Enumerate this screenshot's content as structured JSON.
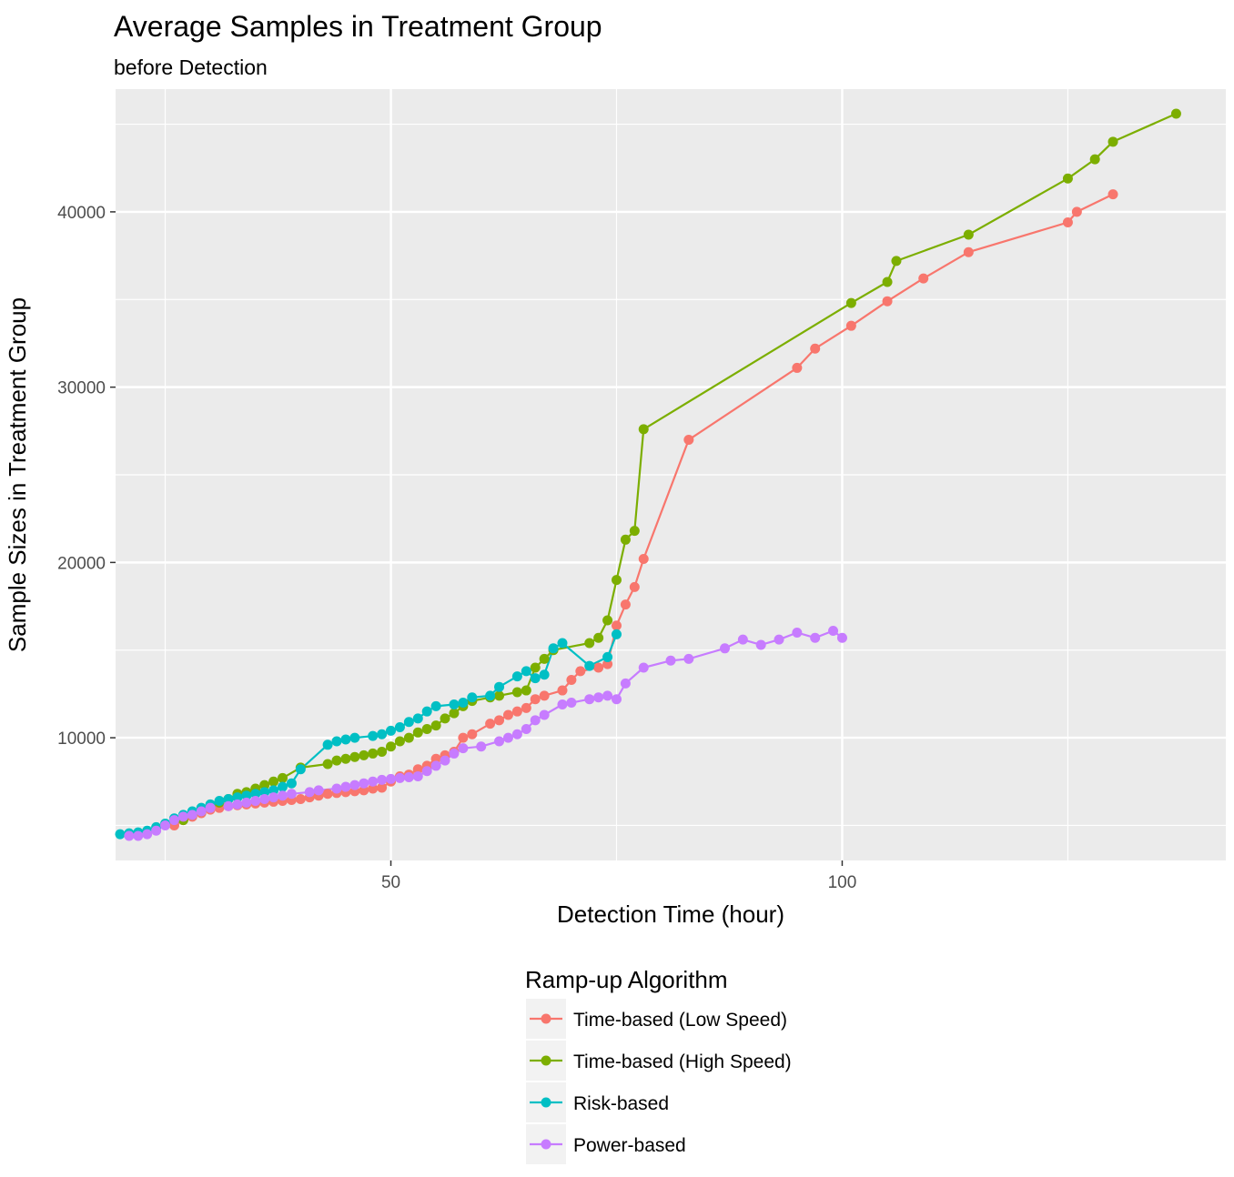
{
  "chart_data": {
    "type": "line",
    "title": "Average Samples in Treatment Group",
    "subtitle": "before Detection",
    "xlabel": "Detection Time (hour)",
    "ylabel": "Sample Sizes in Treatment Group",
    "xlim": [
      19.5,
      142.5
    ],
    "ylim": [
      3000,
      47000
    ],
    "x_major_ticks": [
      50,
      100
    ],
    "x_minor_ticks": [
      25,
      75,
      125
    ],
    "y_major_ticks": [
      10000,
      20000,
      30000,
      40000
    ],
    "y_minor_ticks": [
      5000,
      15000,
      25000,
      35000,
      45000
    ],
    "x_tick_labels": [
      "50",
      "100"
    ],
    "y_tick_labels": [
      "10000",
      "20000",
      "30000",
      "40000"
    ],
    "grid": true,
    "legend_title": "Ramp-up Algorithm",
    "legend_position": "bottom",
    "series": [
      {
        "name": "Time-based (Low Speed)",
        "color": "#F8766D",
        "points": [
          [
            26,
            5000
          ],
          [
            27,
            5300
          ],
          [
            28,
            5500
          ],
          [
            29,
            5700
          ],
          [
            30,
            5900
          ],
          [
            31,
            6000
          ],
          [
            32,
            6100
          ],
          [
            33,
            6150
          ],
          [
            34,
            6200
          ],
          [
            35,
            6250
          ],
          [
            36,
            6300
          ],
          [
            37,
            6350
          ],
          [
            38,
            6400
          ],
          [
            39,
            6450
          ],
          [
            40,
            6500
          ],
          [
            41,
            6600
          ],
          [
            42,
            6700
          ],
          [
            43,
            6800
          ],
          [
            44,
            6850
          ],
          [
            45,
            6900
          ],
          [
            46,
            6950
          ],
          [
            47,
            7000
          ],
          [
            48,
            7100
          ],
          [
            49,
            7150
          ],
          [
            50,
            7500
          ],
          [
            51,
            7800
          ],
          [
            52,
            7900
          ],
          [
            53,
            8200
          ],
          [
            54,
            8400
          ],
          [
            55,
            8800
          ],
          [
            56,
            9000
          ],
          [
            57,
            9200
          ],
          [
            58,
            10000
          ],
          [
            59,
            10200
          ],
          [
            61,
            10800
          ],
          [
            62,
            11000
          ],
          [
            63,
            11300
          ],
          [
            64,
            11500
          ],
          [
            65,
            11700
          ],
          [
            66,
            12200
          ],
          [
            67,
            12400
          ],
          [
            69,
            12700
          ],
          [
            70,
            13300
          ],
          [
            71,
            13800
          ],
          [
            73,
            14000
          ],
          [
            74,
            14200
          ],
          [
            75,
            16400
          ],
          [
            76,
            17600
          ],
          [
            77,
            18600
          ],
          [
            78,
            20200
          ],
          [
            83,
            27000
          ],
          [
            95,
            31100
          ],
          [
            97,
            32200
          ],
          [
            101,
            33500
          ],
          [
            105,
            34900
          ],
          [
            109,
            36200
          ],
          [
            114,
            37700
          ],
          [
            125,
            39400
          ],
          [
            126,
            40000
          ],
          [
            130,
            41000
          ]
        ]
      },
      {
        "name": "Time-based (High Speed)",
        "color": "#7CAE00",
        "points": [
          [
            27,
            5300
          ],
          [
            28,
            5600
          ],
          [
            29,
            5800
          ],
          [
            30,
            6100
          ],
          [
            31,
            6300
          ],
          [
            32,
            6500
          ],
          [
            33,
            6800
          ],
          [
            34,
            6900
          ],
          [
            35,
            7100
          ],
          [
            36,
            7300
          ],
          [
            37,
            7500
          ],
          [
            38,
            7700
          ],
          [
            40,
            8300
          ],
          [
            43,
            8500
          ],
          [
            44,
            8700
          ],
          [
            45,
            8800
          ],
          [
            46,
            8900
          ],
          [
            47,
            9000
          ],
          [
            48,
            9100
          ],
          [
            49,
            9200
          ],
          [
            50,
            9500
          ],
          [
            51,
            9800
          ],
          [
            52,
            10000
          ],
          [
            53,
            10300
          ],
          [
            54,
            10500
          ],
          [
            55,
            10700
          ],
          [
            56,
            11100
          ],
          [
            57,
            11400
          ],
          [
            58,
            11800
          ],
          [
            59,
            12100
          ],
          [
            61,
            12300
          ],
          [
            62,
            12400
          ],
          [
            64,
            12600
          ],
          [
            65,
            12700
          ],
          [
            66,
            14000
          ],
          [
            67,
            14500
          ],
          [
            68,
            15000
          ],
          [
            72,
            15400
          ],
          [
            73,
            15700
          ],
          [
            74,
            16700
          ],
          [
            75,
            19000
          ],
          [
            76,
            21300
          ],
          [
            77,
            21800
          ],
          [
            78,
            27600
          ],
          [
            101,
            34800
          ],
          [
            105,
            36000
          ],
          [
            106,
            37200
          ],
          [
            114,
            38700
          ],
          [
            125,
            41900
          ],
          [
            128,
            43000
          ],
          [
            130,
            44000
          ],
          [
            137,
            45600
          ]
        ]
      },
      {
        "name": "Risk-based",
        "color": "#00BFC4",
        "points": [
          [
            20,
            4500
          ],
          [
            21,
            4550
          ],
          [
            22,
            4600
          ],
          [
            23,
            4700
          ],
          [
            24,
            4900
          ],
          [
            25,
            5100
          ],
          [
            26,
            5400
          ],
          [
            27,
            5600
          ],
          [
            28,
            5800
          ],
          [
            29,
            6000
          ],
          [
            30,
            6200
          ],
          [
            31,
            6400
          ],
          [
            32,
            6500
          ],
          [
            33,
            6600
          ],
          [
            34,
            6700
          ],
          [
            35,
            6800
          ],
          [
            36,
            6900
          ],
          [
            37,
            7000
          ],
          [
            38,
            7200
          ],
          [
            39,
            7400
          ],
          [
            40,
            8200
          ],
          [
            43,
            9600
          ],
          [
            44,
            9800
          ],
          [
            45,
            9900
          ],
          [
            46,
            10000
          ],
          [
            48,
            10100
          ],
          [
            49,
            10200
          ],
          [
            50,
            10400
          ],
          [
            51,
            10600
          ],
          [
            52,
            10900
          ],
          [
            53,
            11100
          ],
          [
            54,
            11500
          ],
          [
            55,
            11800
          ],
          [
            57,
            11900
          ],
          [
            58,
            12000
          ],
          [
            59,
            12300
          ],
          [
            61,
            12400
          ],
          [
            62,
            12900
          ],
          [
            64,
            13500
          ],
          [
            65,
            13800
          ],
          [
            66,
            13400
          ],
          [
            67,
            13600
          ],
          [
            68,
            15100
          ],
          [
            69,
            15400
          ],
          [
            72,
            14100
          ],
          [
            74,
            14600
          ],
          [
            75,
            15900
          ]
        ]
      },
      {
        "name": "Power-based",
        "color": "#C77CFF",
        "points": [
          [
            21,
            4400
          ],
          [
            22,
            4400
          ],
          [
            23,
            4500
          ],
          [
            24,
            4700
          ],
          [
            25,
            5000
          ],
          [
            26,
            5300
          ],
          [
            27,
            5500
          ],
          [
            28,
            5600
          ],
          [
            29,
            5800
          ],
          [
            30,
            6000
          ],
          [
            32,
            6100
          ],
          [
            33,
            6200
          ],
          [
            34,
            6300
          ],
          [
            35,
            6400
          ],
          [
            36,
            6500
          ],
          [
            37,
            6600
          ],
          [
            38,
            6700
          ],
          [
            39,
            6800
          ],
          [
            41,
            6900
          ],
          [
            42,
            7000
          ],
          [
            44,
            7100
          ],
          [
            45,
            7200
          ],
          [
            46,
            7300
          ],
          [
            47,
            7400
          ],
          [
            48,
            7500
          ],
          [
            49,
            7600
          ],
          [
            50,
            7650
          ],
          [
            51,
            7700
          ],
          [
            52,
            7750
          ],
          [
            53,
            7800
          ],
          [
            54,
            8100
          ],
          [
            55,
            8400
          ],
          [
            56,
            8700
          ],
          [
            57,
            9100
          ],
          [
            58,
            9400
          ],
          [
            60,
            9500
          ],
          [
            62,
            9800
          ],
          [
            63,
            10000
          ],
          [
            64,
            10200
          ],
          [
            65,
            10500
          ],
          [
            66,
            11000
          ],
          [
            67,
            11300
          ],
          [
            69,
            11900
          ],
          [
            70,
            12000
          ],
          [
            72,
            12200
          ],
          [
            73,
            12300
          ],
          [
            74,
            12400
          ],
          [
            75,
            12200
          ],
          [
            76,
            13100
          ],
          [
            78,
            14000
          ],
          [
            81,
            14400
          ],
          [
            83,
            14500
          ],
          [
            87,
            15100
          ],
          [
            89,
            15600
          ],
          [
            91,
            15300
          ],
          [
            93,
            15600
          ],
          [
            95,
            16000
          ],
          [
            97,
            15700
          ],
          [
            99,
            16100
          ],
          [
            100,
            15700
          ]
        ]
      }
    ]
  }
}
